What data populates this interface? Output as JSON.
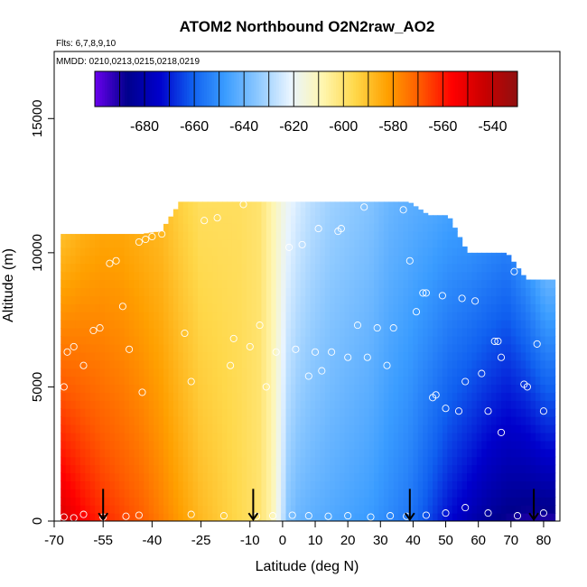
{
  "chart_data": {
    "type": "heatmap",
    "title": "ATOM2 Northbound O2N2raw_AO2",
    "flights_note": "Flts: 6,7,8,9,10",
    "dates_note": "MMDD: 0210,0213,0215,0218,0219",
    "xlabel": "Latitude (deg N)",
    "ylabel": "Altitude (m)",
    "xlim": [
      -70,
      85
    ],
    "ylim": [
      0,
      17500
    ],
    "xticks": [
      -70,
      -55,
      -40,
      -25,
      -10,
      0,
      10,
      20,
      30,
      40,
      50,
      60,
      70,
      80
    ],
    "yticks": [
      0,
      5000,
      10000,
      15000
    ],
    "colorbar": {
      "range": [
        -700,
        -530
      ],
      "ticks": [
        -680,
        -660,
        -640,
        -620,
        -600,
        -580,
        -560,
        -540
      ],
      "colors": [
        "#6a00ee",
        "#00008c",
        "#0000cc",
        "#1060f0",
        "#3a9cff",
        "#8cc8ff",
        "#e8f4ff",
        "#fff6b0",
        "#ffd84a",
        "#ffa000",
        "#ff5a00",
        "#ff0000",
        "#c80000",
        "#901010"
      ]
    },
    "field_columns": {
      "latitude": [
        -68,
        -62,
        -56,
        -50,
        -44,
        -38,
        -32,
        -26,
        -20,
        -14,
        -8,
        -4,
        -1,
        1,
        4,
        8,
        14,
        20,
        26,
        32,
        38,
        44,
        50,
        56,
        62,
        68,
        74,
        80
      ],
      "top_altitude": [
        10700,
        10700,
        10700,
        10700,
        10700,
        10800,
        11900,
        11900,
        11900,
        11900,
        11900,
        11900,
        11900,
        11900,
        11900,
        11900,
        11900,
        11900,
        11900,
        11900,
        11900,
        11400,
        11400,
        10000,
        10000,
        10000,
        9000,
        9000
      ],
      "surface_value": [
        -548,
        -556,
        -562,
        -566,
        -570,
        -576,
        -582,
        -588,
        -592,
        -596,
        -600,
        -608,
        -625,
        -636,
        -640,
        -642,
        -644,
        -646,
        -648,
        -652,
        -656,
        -664,
        -672,
        -678,
        -684,
        -688,
        -690,
        -690
      ],
      "upper_value": [
        -590,
        -586,
        -584,
        -584,
        -586,
        -588,
        -594,
        -598,
        -598,
        -598,
        -600,
        -608,
        -616,
        -620,
        -624,
        -628,
        -632,
        -634,
        -636,
        -640,
        -642,
        -644,
        -646,
        -650,
        -652,
        -654,
        -650,
        -640
      ]
    },
    "observations": [
      {
        "lat": -67,
        "alt": 150
      },
      {
        "lat": -64,
        "alt": 120
      },
      {
        "lat": -61,
        "alt": 250
      },
      {
        "lat": -55,
        "alt": 150
      },
      {
        "lat": -48,
        "alt": 180
      },
      {
        "lat": -44,
        "alt": 220
      },
      {
        "lat": -28,
        "alt": 250
      },
      {
        "lat": -18,
        "alt": 200
      },
      {
        "lat": -8,
        "alt": 180
      },
      {
        "lat": -3,
        "alt": 200
      },
      {
        "lat": 3,
        "alt": 220
      },
      {
        "lat": 8,
        "alt": 200
      },
      {
        "lat": 14,
        "alt": 180
      },
      {
        "lat": 20,
        "alt": 200
      },
      {
        "lat": 27,
        "alt": 150
      },
      {
        "lat": 33,
        "alt": 200
      },
      {
        "lat": 38,
        "alt": 180
      },
      {
        "lat": 44,
        "alt": 220
      },
      {
        "lat": 50,
        "alt": 300
      },
      {
        "lat": 56,
        "alt": 500
      },
      {
        "lat": 63,
        "alt": 300
      },
      {
        "lat": 72,
        "alt": 200
      },
      {
        "lat": 80,
        "alt": 300
      },
      {
        "lat": -67,
        "alt": 5000
      },
      {
        "lat": -66,
        "alt": 6300
      },
      {
        "lat": -64,
        "alt": 6500
      },
      {
        "lat": -61,
        "alt": 5800
      },
      {
        "lat": -58,
        "alt": 7100
      },
      {
        "lat": -56,
        "alt": 7200
      },
      {
        "lat": -53,
        "alt": 9600
      },
      {
        "lat": -51,
        "alt": 9700
      },
      {
        "lat": -49,
        "alt": 8000
      },
      {
        "lat": -47,
        "alt": 6400
      },
      {
        "lat": -44,
        "alt": 10400
      },
      {
        "lat": -42,
        "alt": 10500
      },
      {
        "lat": -40,
        "alt": 10600
      },
      {
        "lat": -37,
        "alt": 10700
      },
      {
        "lat": -43,
        "alt": 4800
      },
      {
        "lat": -30,
        "alt": 7000
      },
      {
        "lat": -28,
        "alt": 5200
      },
      {
        "lat": -24,
        "alt": 11200
      },
      {
        "lat": -20,
        "alt": 11300
      },
      {
        "lat": -15,
        "alt": 6800
      },
      {
        "lat": -16,
        "alt": 5800
      },
      {
        "lat": -12,
        "alt": 11800
      },
      {
        "lat": -10,
        "alt": 6500
      },
      {
        "lat": -7,
        "alt": 7300
      },
      {
        "lat": -5,
        "alt": 5000
      },
      {
        "lat": -2,
        "alt": 6300
      },
      {
        "lat": 2,
        "alt": 10200
      },
      {
        "lat": 4,
        "alt": 6400
      },
      {
        "lat": 6,
        "alt": 10300
      },
      {
        "lat": 8,
        "alt": 5400
      },
      {
        "lat": 10,
        "alt": 6300
      },
      {
        "lat": 11,
        "alt": 10900
      },
      {
        "lat": 12,
        "alt": 5600
      },
      {
        "lat": 15,
        "alt": 6300
      },
      {
        "lat": 17,
        "alt": 10800
      },
      {
        "lat": 18,
        "alt": 10900
      },
      {
        "lat": 20,
        "alt": 6100
      },
      {
        "lat": 23,
        "alt": 7300
      },
      {
        "lat": 25,
        "alt": 11700
      },
      {
        "lat": 26,
        "alt": 6100
      },
      {
        "lat": 29,
        "alt": 7200
      },
      {
        "lat": 32,
        "alt": 5800
      },
      {
        "lat": 34,
        "alt": 7200
      },
      {
        "lat": 37,
        "alt": 11600
      },
      {
        "lat": 39,
        "alt": 9700
      },
      {
        "lat": 41,
        "alt": 7800
      },
      {
        "lat": 43,
        "alt": 8500
      },
      {
        "lat": 44,
        "alt": 8500
      },
      {
        "lat": 46,
        "alt": 4600
      },
      {
        "lat": 47,
        "alt": 4700
      },
      {
        "lat": 49,
        "alt": 8400
      },
      {
        "lat": 50,
        "alt": 4200
      },
      {
        "lat": 54,
        "alt": 4100
      },
      {
        "lat": 55,
        "alt": 8300
      },
      {
        "lat": 56,
        "alt": 5200
      },
      {
        "lat": 59,
        "alt": 8200
      },
      {
        "lat": 61,
        "alt": 5500
      },
      {
        "lat": 63,
        "alt": 4100
      },
      {
        "lat": 65,
        "alt": 6700
      },
      {
        "lat": 66,
        "alt": 6700
      },
      {
        "lat": 67,
        "alt": 6100
      },
      {
        "lat": 67,
        "alt": 3300
      },
      {
        "lat": 71,
        "alt": 9300
      },
      {
        "lat": 74,
        "alt": 5100
      },
      {
        "lat": 75,
        "alt": 5000
      },
      {
        "lat": 78,
        "alt": 6600
      },
      {
        "lat": 80,
        "alt": 4100
      }
    ],
    "flight_markers": [
      -55,
      -9,
      39,
      77
    ],
    "grid": false,
    "legend": "colorbar-top"
  }
}
